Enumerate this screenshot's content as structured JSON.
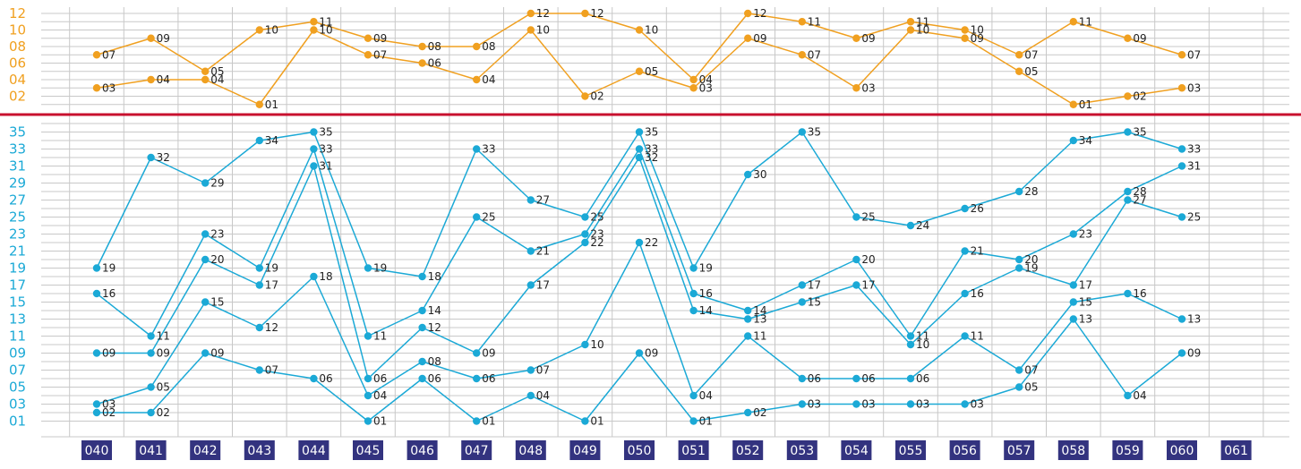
{
  "chart_data": {
    "type": "line",
    "title": "",
    "categories": [
      "040",
      "041",
      "042",
      "043",
      "044",
      "045",
      "046",
      "047",
      "048",
      "049",
      "050",
      "051",
      "052",
      "053",
      "054",
      "055",
      "056",
      "057",
      "058",
      "059",
      "060",
      "061"
    ],
    "colors": {
      "top": "#f0a020",
      "bottom": "#1ba9d6",
      "divider": "#c8102e",
      "x_tick_bg": "#33337f",
      "grid": "#c8c8c8"
    },
    "grid": true,
    "top_panel": {
      "y_ticks": [
        "02",
        "04",
        "06",
        "08",
        "10",
        "12"
      ],
      "ylim": [
        0,
        12.4
      ],
      "series": [
        {
          "values": [
            7,
            9,
            5,
            10,
            11,
            9,
            8,
            8,
            12,
            12,
            10,
            4,
            12,
            11,
            9,
            11,
            10,
            7,
            11,
            9,
            7
          ]
        },
        {
          "values": [
            3,
            4,
            4,
            1,
            10,
            7,
            6,
            4,
            10,
            2,
            5,
            3,
            9,
            7,
            3,
            10,
            9,
            5,
            1,
            2,
            3
          ]
        }
      ]
    },
    "bottom_panel": {
      "y_ticks": [
        "01",
        "03",
        "05",
        "07",
        "09",
        "11",
        "13",
        "15",
        "17",
        "19",
        "21",
        "23",
        "25",
        "27",
        "29",
        "31",
        "33",
        "35"
      ],
      "ylim": [
        0,
        36
      ],
      "series": [
        {
          "values": [
            2,
            2,
            9,
            7,
            6,
            1,
            6,
            1,
            4,
            1,
            9,
            1,
            2,
            3,
            3,
            3,
            3,
            5,
            13,
            4,
            9
          ]
        },
        {
          "values": [
            3,
            5,
            15,
            12,
            18,
            4,
            8,
            6,
            7,
            10,
            22,
            4,
            11,
            6,
            6,
            6,
            11,
            7,
            15,
            16,
            13
          ]
        },
        {
          "values": [
            9,
            9,
            20,
            17,
            31,
            6,
            12,
            9,
            17,
            22,
            32,
            14,
            13,
            15,
            17,
            10,
            16,
            19,
            17,
            27,
            25
          ]
        },
        {
          "values": [
            16,
            11,
            23,
            19,
            33,
            11,
            14,
            25,
            21,
            23,
            33,
            16,
            14,
            17,
            20,
            11,
            21,
            20,
            23,
            28,
            31
          ]
        },
        {
          "values": [
            19,
            32,
            29,
            34,
            35,
            19,
            18,
            33,
            27,
            25,
            35,
            19,
            30,
            35,
            25,
            24,
            26,
            28,
            34,
            35,
            33
          ]
        }
      ]
    }
  }
}
